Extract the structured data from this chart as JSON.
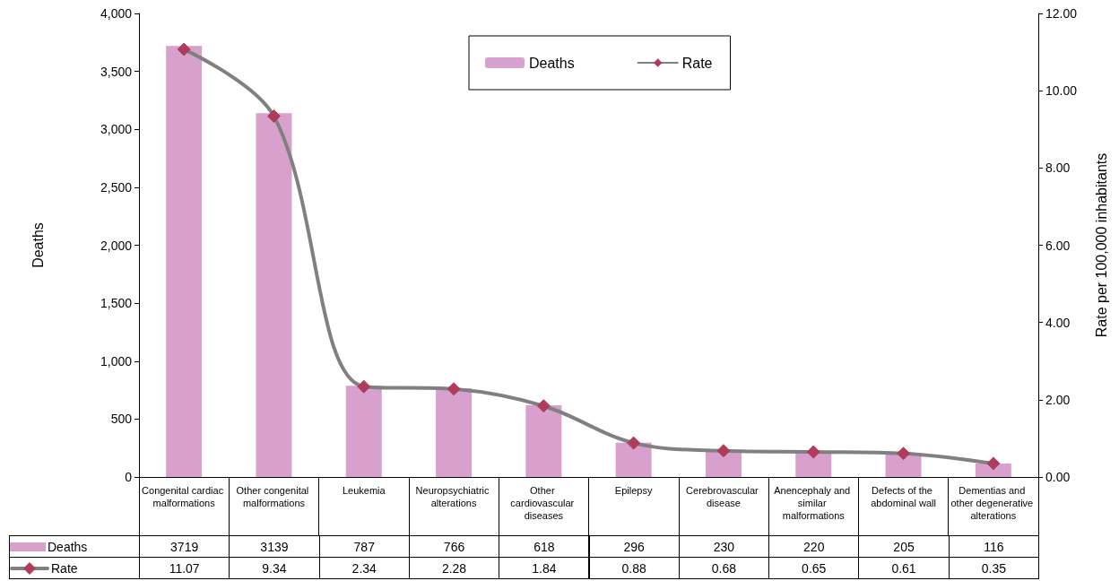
{
  "chart_data": {
    "type": "bar",
    "ylabel": "Deaths",
    "y2label": "Rate per 100,000 inhabitants",
    "categories": [
      "Congenital cardiac malformations",
      "Other congenital malformations",
      "Leukemia",
      "Neuropsychiatric alterations",
      "Other cardiovascular diseases",
      "Epilepsy",
      "Cerebrovascular disease",
      "Anencephaly and similar malformations",
      "Defects of the abdominal wall",
      "Dementias and other degenerative alterations"
    ],
    "series": [
      {
        "name": "Deaths",
        "color": "#d8a0cc",
        "values": [
          3719,
          3139,
          787,
          766,
          618,
          296,
          230,
          220,
          205,
          116
        ]
      },
      {
        "name": "Rate",
        "type": "line",
        "axis": "y2",
        "color": "#808080",
        "marker": "diamond",
        "values": [
          11.07,
          9.34,
          2.34,
          2.28,
          1.84,
          0.88,
          0.68,
          0.65,
          0.61,
          0.35
        ]
      }
    ],
    "ylim": [
      0,
      4000
    ],
    "yticks": [
      0,
      500,
      {
        "value": 1000,
        "label": "1,000"
      },
      {
        "value": 1500,
        "label": "1,500"
      },
      {
        "value": 2000,
        "label": "2,000"
      },
      {
        "value": 2500,
        "label": "2,500"
      },
      {
        "value": 3000,
        "label": "3,000"
      },
      {
        "value": 3500,
        "label": "3,500"
      },
      {
        "value": 4000,
        "label": "4,000"
      }
    ],
    "y2lim": [
      0,
      12
    ],
    "y2ticks": [
      {
        "value": 0,
        "label": "0.00"
      },
      {
        "value": 2,
        "label": "2.00"
      },
      {
        "value": 4,
        "label": "4.00"
      },
      {
        "value": 6,
        "label": "6.00"
      },
      {
        "value": 8,
        "label": "8.00"
      },
      {
        "value": 10,
        "label": "10.00"
      },
      {
        "value": 12,
        "label": "12.00"
      }
    ],
    "grid": false,
    "legend": "top",
    "data_labels": true
  }
}
